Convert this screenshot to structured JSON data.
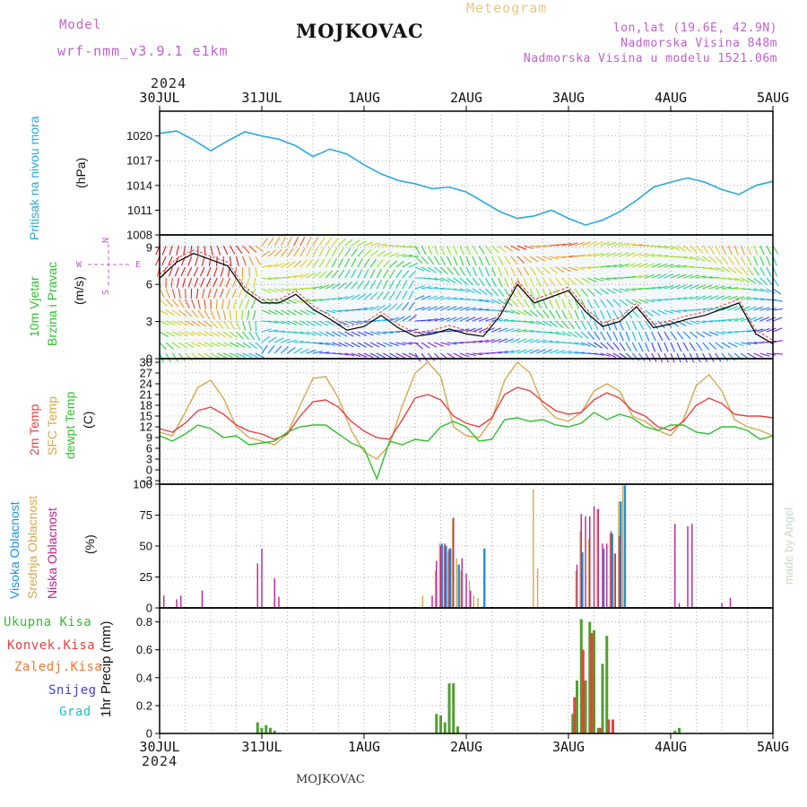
{
  "header": {
    "model_label": "Model",
    "model_name": "wrf-nmm_v3.9.1 e1km",
    "station": "MOJKOVAC",
    "meteogram": "Meteogram",
    "lonlat": "lon,lat (19.6E, 42.9N)",
    "altitude": "Nadmorska Visina 848m",
    "model_altitude": "Nadmorska Visina u modelu 1521.06m",
    "footer_station": "MOJKOVAC",
    "credit": "made by Angel"
  },
  "time_axis": {
    "year": "2024",
    "labels": [
      "30JUL",
      "31JUL",
      "1AUG",
      "2AUG",
      "3AUG",
      "4AUG",
      "5AUG"
    ]
  },
  "colors": {
    "pressure": "#29a8e0",
    "temp2m": "#e84040",
    "sfc_temp": "#d4a850",
    "dewpoint": "#30c030",
    "high_cloud": "#2090e0",
    "mid_cloud": "#d4a850",
    "low_cloud": "#c02090",
    "total_precip": "#50a030",
    "conv_precip": "#e84040"
  },
  "panels": {
    "pressure": {
      "titles": [
        {
          "text": "Pritisak na nivou mora",
          "color": "#29a8e0"
        }
      ],
      "unit": "(hPa)",
      "ylim": [
        1008,
        1023
      ],
      "ticks": [
        "1008",
        "1011",
        "1014",
        "1017",
        "1020"
      ]
    },
    "wind": {
      "titles": [
        {
          "text": "10m Vjetar",
          "color": "#30c030"
        },
        {
          "text": "Brzina i Pravac",
          "color": "#30c030"
        }
      ],
      "unit": "(m/s)",
      "ylim": [
        0,
        10
      ],
      "ticks": [
        "0",
        "3",
        "6",
        "9"
      ],
      "compass": {
        "n": "N",
        "s": "S",
        "e": "E",
        "w": "W"
      }
    },
    "temperature": {
      "titles": [
        {
          "text": "2m Temp",
          "color": "#e84040"
        },
        {
          "text": "SFC Temp",
          "color": "#d4a850"
        },
        {
          "text": "dewpt Temp",
          "color": "#30c030"
        }
      ],
      "unit": "(C)",
      "ylim": [
        -4,
        31
      ],
      "ticks": [
        "-3",
        "0",
        "3",
        "6",
        "9",
        "12",
        "15",
        "18",
        "21",
        "24",
        "27",
        "30"
      ]
    },
    "clouds": {
      "titles": [
        {
          "text": "Visoka Oblacnost",
          "color": "#2090e0"
        },
        {
          "text": "Srednja Oblacnost",
          "color": "#d4a850"
        },
        {
          "text": "Niska Oblacnost",
          "color": "#c02090"
        }
      ],
      "unit": "(%)",
      "ylim": [
        0,
        100
      ],
      "ticks": [
        "0",
        "25",
        "50",
        "75",
        "100"
      ]
    },
    "precip": {
      "legend": [
        {
          "text": "Ukupna Kisa",
          "color": "#30c030"
        },
        {
          "text": "Konvek.Kisa",
          "color": "#e84040"
        },
        {
          "text": "Zaledj.Kisa",
          "color": "#f07830"
        },
        {
          "text": "Snijeg",
          "color": "#4040e0"
        },
        {
          "text": "Grad",
          "color": "#20c0c0"
        }
      ],
      "unit": "1hr Precip (mm)",
      "ylim": [
        0,
        0.9
      ],
      "ticks": [
        "0",
        "0.2",
        "0.4",
        "0.6",
        "0.8"
      ]
    }
  },
  "chart_data": [
    {
      "type": "line",
      "name": "pressure",
      "x_hours": [
        0,
        4,
        8,
        12,
        16,
        20,
        24,
        28,
        32,
        36,
        40,
        44,
        48,
        52,
        56,
        60,
        64,
        68,
        72,
        76,
        80,
        84,
        88,
        92,
        96,
        100,
        104,
        108,
        112,
        116,
        120,
        124,
        128,
        132,
        136,
        140,
        144
      ],
      "series": [
        {
          "name": "Pritisak na nivou mora",
          "values": [
            1020.3,
            1020.6,
            1019.5,
            1018.2,
            1019.4,
            1020.5,
            1020.0,
            1019.6,
            1018.8,
            1017.5,
            1018.4,
            1017.8,
            1016.5,
            1015.4,
            1014.6,
            1014.2,
            1013.6,
            1013.8,
            1013.2,
            1012.0,
            1010.8,
            1010.0,
            1010.3,
            1011.0,
            1010.0,
            1009.2,
            1009.8,
            1010.8,
            1012.2,
            1013.8,
            1014.4,
            1014.9,
            1014.4,
            1013.5,
            1012.9,
            1014.0,
            1014.5
          ]
        }
      ]
    },
    {
      "type": "line",
      "name": "wind_speed",
      "x_hours": [
        0,
        4,
        8,
        12,
        16,
        20,
        24,
        28,
        32,
        36,
        40,
        44,
        48,
        52,
        56,
        60,
        64,
        68,
        72,
        76,
        80,
        84,
        88,
        92,
        96,
        100,
        104,
        108,
        112,
        116,
        120,
        124,
        128,
        132,
        136,
        140,
        144
      ],
      "series": [
        {
          "name": "10m Vjetar",
          "values": [
            6.5,
            7.8,
            8.5,
            8.0,
            7.5,
            5.5,
            4.5,
            4.5,
            5.2,
            4.0,
            3.2,
            2.3,
            2.6,
            3.5,
            2.5,
            1.8,
            2.0,
            2.4,
            2.0,
            1.8,
            3.5,
            6.0,
            4.5,
            5.0,
            5.5,
            3.8,
            2.6,
            3.0,
            4.2,
            2.5,
            2.8,
            3.2,
            3.5,
            4.0,
            4.5,
            2.0,
            1.2
          ]
        }
      ]
    },
    {
      "type": "line",
      "name": "temperature",
      "x_hours": [
        0,
        3,
        6,
        9,
        12,
        15,
        18,
        21,
        24,
        27,
        30,
        33,
        36,
        39,
        42,
        45,
        48,
        51,
        54,
        57,
        60,
        63,
        66,
        69,
        72,
        75,
        78,
        81,
        84,
        87,
        90,
        93,
        96,
        99,
        102,
        105,
        108,
        111,
        114,
        117,
        120,
        123,
        126,
        129,
        132,
        135,
        138,
        141,
        144
      ],
      "series": [
        {
          "name": "2m Temp",
          "values": [
            11.5,
            10.5,
            13.0,
            16.5,
            17.5,
            15.5,
            12.5,
            10.8,
            10.0,
            8.5,
            10.0,
            15.0,
            19.0,
            19.5,
            17.5,
            13.5,
            10.8,
            9.0,
            8.5,
            14.0,
            20.0,
            21.0,
            19.5,
            15.0,
            13.0,
            12.0,
            14.5,
            21.0,
            23.0,
            22.0,
            19.0,
            16.5,
            15.5,
            16.0,
            19.5,
            21.5,
            20.0,
            16.5,
            15.0,
            12.0,
            11.0,
            13.5,
            18.0,
            20.0,
            18.5,
            15.5,
            15.0,
            15.0,
            14.5
          ]
        },
        {
          "name": "SFC Temp",
          "values": [
            10.5,
            9.5,
            16.0,
            23.0,
            25.0,
            20.0,
            12.0,
            9.0,
            8.0,
            7.0,
            10.0,
            18.0,
            25.5,
            26.0,
            20.0,
            11.0,
            5.0,
            3.0,
            7.0,
            18.0,
            27.0,
            30.0,
            26.0,
            12.0,
            9.5,
            9.0,
            14.0,
            25.0,
            30.0,
            27.0,
            18.0,
            14.5,
            13.5,
            16.0,
            22.0,
            24.0,
            22.0,
            15.0,
            13.5,
            11.0,
            9.5,
            14.0,
            23.5,
            26.5,
            22.0,
            14.0,
            12.0,
            11.0,
            9.5
          ]
        },
        {
          "name": "dewpt Temp",
          "values": [
            9.5,
            8.0,
            10.0,
            12.5,
            11.5,
            9.0,
            9.5,
            7.0,
            7.5,
            8.0,
            10.5,
            12.0,
            12.5,
            12.5,
            10.0,
            7.5,
            6.0,
            -2.5,
            8.0,
            7.0,
            8.5,
            8.0,
            12.0,
            13.5,
            12.0,
            8.0,
            8.5,
            14.0,
            14.5,
            13.5,
            14.0,
            12.5,
            12.0,
            13.0,
            16.0,
            14.0,
            15.5,
            14.5,
            12.0,
            11.0,
            12.5,
            12.5,
            10.5,
            10.0,
            12.0,
            12.0,
            11.0,
            8.5,
            9.5
          ]
        }
      ]
    },
    {
      "type": "bar",
      "name": "clouds",
      "series": [
        {
          "name": "Visoka Oblacnost",
          "points": [
            [
              66,
              52
            ],
            [
              67,
              50
            ],
            [
              68,
              48
            ],
            [
              70,
              35
            ],
            [
              76,
              48
            ],
            [
              99,
              45
            ],
            [
              104,
              48
            ],
            [
              106,
              60
            ],
            [
              108,
              86
            ],
            [
              109,
              99
            ]
          ]
        },
        {
          "name": "Srednja Oblacnost",
          "points": [
            [
              62,
              10
            ],
            [
              65,
              30
            ],
            [
              66,
              52
            ],
            [
              67,
              50
            ],
            [
              68,
              46
            ],
            [
              69,
              72
            ],
            [
              70,
              40
            ],
            [
              71,
              30
            ],
            [
              73,
              22
            ],
            [
              74,
              10
            ],
            [
              75,
              8
            ],
            [
              88,
              96
            ],
            [
              89,
              32
            ],
            [
              98,
              30
            ],
            [
              99,
              62
            ],
            [
              101,
              56
            ],
            [
              103,
              80
            ],
            [
              106,
              60
            ],
            [
              107,
              44
            ],
            [
              108,
              86
            ],
            [
              109,
              99
            ]
          ]
        },
        {
          "name": "Niska Oblacnost",
          "points": [
            [
              1,
              10
            ],
            [
              4,
              7
            ],
            [
              5,
              10
            ],
            [
              10,
              14
            ],
            [
              16,
              0
            ],
            [
              17,
              0
            ],
            [
              23,
              36
            ],
            [
              24,
              48
            ],
            [
              27,
              24
            ],
            [
              28,
              9
            ],
            [
              64,
              10
            ],
            [
              65,
              38
            ],
            [
              66,
              50
            ],
            [
              67,
              52
            ],
            [
              68,
              48
            ],
            [
              69,
              73
            ],
            [
              71,
              40
            ],
            [
              72,
              28
            ],
            [
              73,
              14
            ],
            [
              98,
              35
            ],
            [
              99,
              76
            ],
            [
              100,
              74
            ],
            [
              101,
              74
            ],
            [
              102,
              82
            ],
            [
              103,
              80
            ],
            [
              104,
              52
            ],
            [
              105,
              52
            ],
            [
              106,
              62
            ],
            [
              107,
              44
            ],
            [
              108,
              58
            ],
            [
              121,
              68
            ],
            [
              122,
              4
            ],
            [
              124,
              66
            ],
            [
              125,
              68
            ],
            [
              132,
              4
            ],
            [
              134,
              8
            ]
          ]
        }
      ]
    },
    {
      "type": "bar",
      "name": "precip",
      "series": [
        {
          "name": "Ukupna Kisa",
          "points": [
            [
              23,
              0.08
            ],
            [
              24,
              0.04
            ],
            [
              25,
              0.06
            ],
            [
              26,
              0.04
            ],
            [
              27,
              0.02
            ],
            [
              65,
              0.14
            ],
            [
              66,
              0.13
            ],
            [
              67,
              0.08
            ],
            [
              68,
              0.36
            ],
            [
              69,
              0.36
            ],
            [
              70,
              0.05
            ],
            [
              97,
              0.14
            ],
            [
              98,
              0.38
            ],
            [
              99,
              0.82
            ],
            [
              100,
              0.38
            ],
            [
              101,
              0.8
            ],
            [
              102,
              0.74
            ],
            [
              103,
              0.04
            ],
            [
              104,
              0.5
            ],
            [
              105,
              0.7
            ],
            [
              121,
              0.02
            ],
            [
              122,
              0.04
            ]
          ]
        },
        {
          "name": "Konvek.Kisa",
          "points": [
            [
              97,
              0.26
            ],
            [
              99,
              0.6
            ],
            [
              101,
              0.72
            ],
            [
              103,
              0.04
            ],
            [
              105,
              0.1
            ],
            [
              106,
              0.1
            ]
          ]
        }
      ]
    },
    {
      "type": "vector",
      "name": "wind_direction",
      "description": "10m wind barbs colored by speed",
      "series": []
    }
  ]
}
